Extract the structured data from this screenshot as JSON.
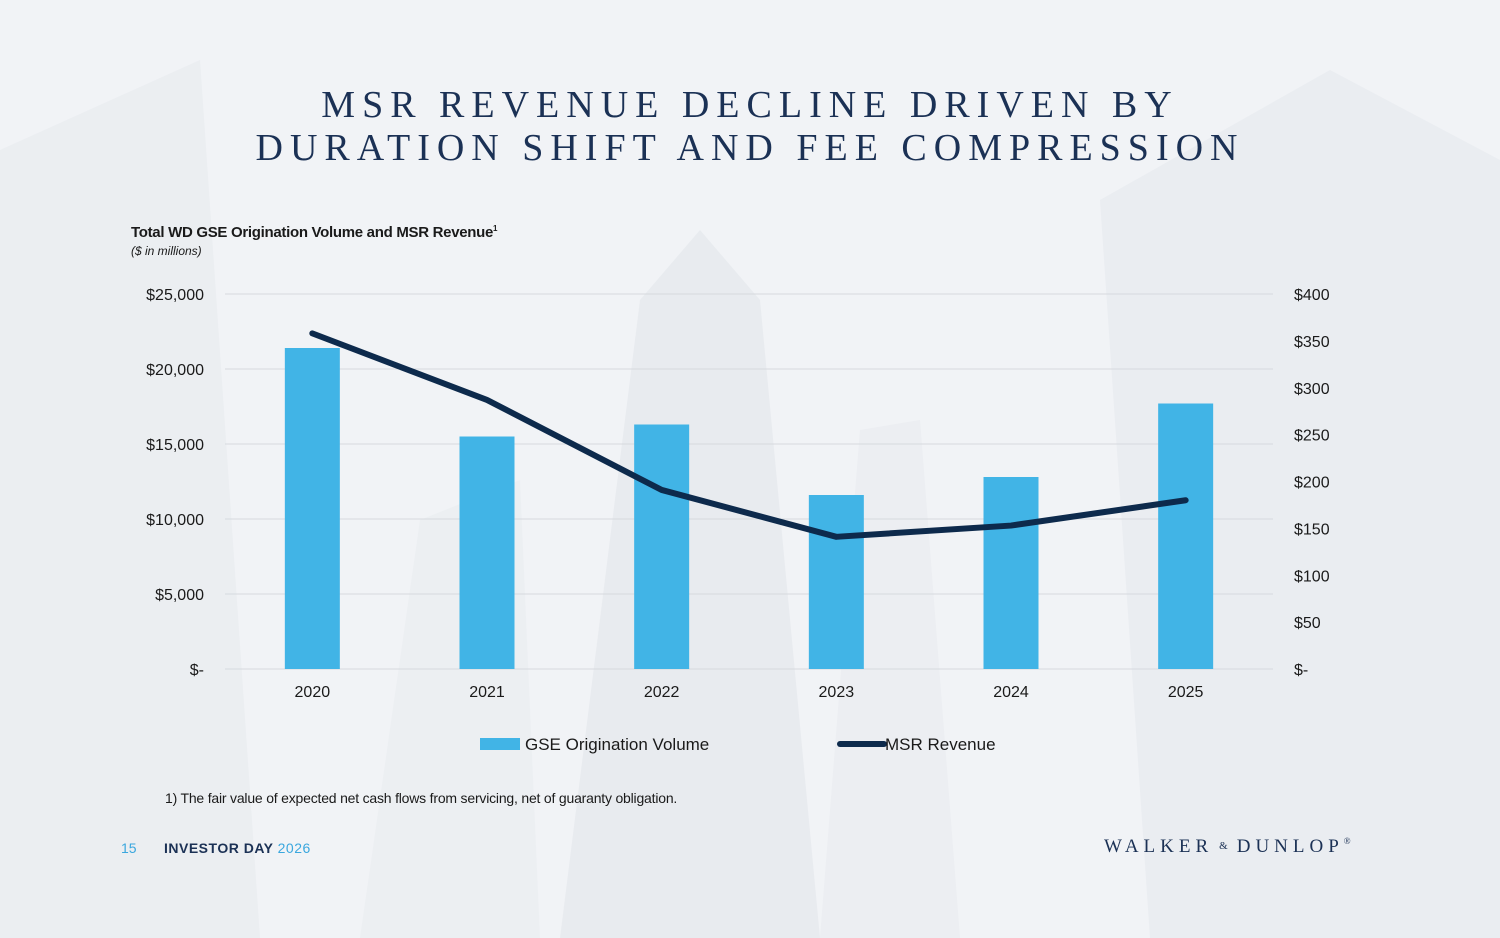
{
  "slide": {
    "title_line1": "MSR REVENUE DECLINE DRIVEN BY",
    "title_line2": "DURATION SHIFT AND FEE COMPRESSION",
    "chart_title": "Total WD GSE Origination Volume and MSR Revenue",
    "chart_title_sup": "1",
    "chart_subtitle": "($ in millions)",
    "footnote": "1)  The fair value of expected net cash flows from servicing, net of guaranty obligation.",
    "page_number": "15",
    "event_label": "INVESTOR DAY",
    "event_year": "2026",
    "logo_left": "WALKER",
    "logo_amp": "&",
    "logo_right": "DUNLOP",
    "logo_reg": "®"
  },
  "colors": {
    "bar": "#41b4e6",
    "line": "#0d2a4c",
    "grid": "#d6d9de",
    "axis_text": "#1a1a1a",
    "title": "#1b3155",
    "accent": "#3aa7de"
  },
  "chart_data": {
    "type": "bar",
    "title": "Total WD GSE Origination Volume and MSR Revenue",
    "subtitle": "($ in millions)",
    "categories": [
      "2020",
      "2021",
      "2022",
      "2023",
      "2024",
      "2025"
    ],
    "series": [
      {
        "name": "GSE Origination Volume",
        "type": "bar",
        "axis": "left",
        "values": [
          21400,
          15500,
          16300,
          11600,
          12800,
          17700
        ]
      },
      {
        "name": "MSR Revenue",
        "type": "line",
        "axis": "right",
        "values": [
          358,
          287,
          191,
          141,
          153,
          180
        ]
      }
    ],
    "y_left": {
      "min": 0,
      "max": 25000,
      "ticks": [
        0,
        5000,
        10000,
        15000,
        20000,
        25000
      ],
      "tick_labels": [
        "$-",
        "$5,000",
        "$10,000",
        "$15,000",
        "$20,000",
        "$25,000"
      ]
    },
    "y_right": {
      "min": 0,
      "max": 400,
      "ticks": [
        0,
        50,
        100,
        150,
        200,
        250,
        300,
        350,
        400
      ],
      "tick_labels": [
        "$-",
        "$50",
        "$100",
        "$150",
        "$200",
        "$250",
        "$300",
        "$350",
        "$400"
      ]
    },
    "grid": true,
    "legend": [
      "GSE Origination Volume",
      "MSR Revenue"
    ],
    "legend_position": "bottom"
  }
}
